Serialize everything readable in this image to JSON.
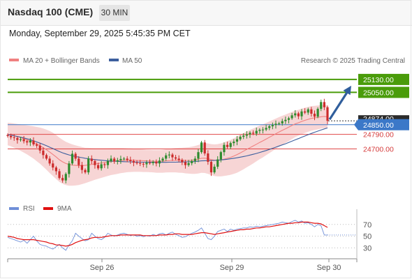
{
  "header": {
    "instrument": "Nasdaq 100 (CME)",
    "timeframe": "30 MIN",
    "datetime": "Monday, September 29, 2025 5:45:35 PM CET"
  },
  "legend": {
    "ma20_label": "MA 20 + Bollinger Bands",
    "ma50_label": "MA 50",
    "credit": "Research © 2025 Trading Central",
    "rsi_label": "RSI",
    "rsi_ma_label": "9MA"
  },
  "colors": {
    "resistance": "#4a9c0a",
    "pivot": "#3b78c8",
    "support": "#e04848",
    "candle_up": "#2e8b2e",
    "candle_down": "#cc2c2c",
    "bollinger_band": "#f4c7c7",
    "ma20": "#f08080",
    "ma50": "#3d5f9e",
    "arrow": "#305e9c",
    "rsi": "#6f8fd8",
    "rsi_ma": "#e01010"
  },
  "chart_data": [
    {
      "type": "candlestick",
      "title": "Nasdaq 100 (CME)",
      "x_ticks": [
        "Sep 26",
        "Sep 29",
        "Sep 30"
      ],
      "ylim": [
        24400,
        25190
      ],
      "current_price": 24874,
      "current_price_label": "24874.00",
      "levels": [
        {
          "role": "resistance",
          "value": 25130,
          "label": "25130.00"
        },
        {
          "role": "resistance",
          "value": 25050,
          "label": "25050.00"
        },
        {
          "role": "pivot",
          "value": 24850,
          "label": "24850.00"
        },
        {
          "role": "support",
          "value": 24790,
          "label": "24790.00"
        },
        {
          "role": "support",
          "value": 24700,
          "label": "24700.00"
        }
      ],
      "forecast_arrow": {
        "from": 24874,
        "to": 25130
      },
      "close_series": [
        24780,
        24772,
        24768,
        24755,
        24760,
        24748,
        24740,
        24752,
        24728,
        24720,
        24690,
        24662,
        24640,
        24610,
        24585,
        24562,
        24520,
        24505,
        24545,
        24610,
        24670,
        24640,
        24600,
        24570,
        24555,
        24640,
        24625,
        24600,
        24580,
        24605,
        24600,
        24625,
        24640,
        24622,
        24630,
        24638,
        24640,
        24632,
        24625,
        24615,
        24612,
        24608,
        24605,
        24615,
        24612,
        24620,
        24610,
        24628,
        24640,
        24660,
        24665,
        24648,
        24640,
        24632,
        24618,
        24600,
        24612,
        24625,
        24640,
        24680,
        24740,
        24672,
        24620,
        24555,
        24590,
        24635,
        24680,
        24725,
        24712,
        24736,
        24745,
        24760,
        24775,
        24782,
        24790,
        24800,
        24795,
        24812,
        24818,
        24820,
        24830,
        24840,
        24848,
        24856,
        24858,
        24872,
        24880,
        24890,
        24908,
        24920,
        24902,
        24932,
        24925,
        24945,
        24918,
        24900,
        24948,
        24990,
        24958,
        24874
      ],
      "ma20": [
        24792,
        24788,
        24782,
        24776,
        24770,
        24763,
        24756,
        24748,
        24740,
        24730,
        24720,
        24708,
        24695,
        24681,
        24666,
        24650,
        24633,
        24620,
        24610,
        24604,
        24600,
        24598,
        24597,
        24597,
        24598,
        24601,
        24604,
        24607,
        24610,
        24613,
        24616,
        24619,
        24622,
        24624,
        24626,
        24628,
        24629,
        24630,
        24630,
        24630,
        24629,
        24628,
        24627,
        24626,
        24625,
        24624,
        24623,
        24623,
        24624,
        24626,
        24628,
        24629,
        24630,
        24630,
        24630,
        24629,
        24629,
        24630,
        24632,
        24636,
        24642,
        24643,
        24640,
        24634,
        24630,
        24630,
        24632,
        24637,
        24642,
        24648,
        24656,
        24665,
        24675,
        24686,
        24697,
        24708,
        24718,
        24729,
        24740,
        24750,
        24761,
        24772,
        24783,
        24794,
        24805,
        24815,
        24825,
        24835,
        24845,
        24855,
        24862,
        24870,
        24877,
        24883,
        24889,
        24892,
        24895,
        24899,
        24901,
        24898
      ],
      "ma50": [
        24788,
        24785,
        24781,
        24777,
        24773,
        24768,
        24763,
        24757,
        24750,
        24743,
        24736,
        24728,
        24720,
        24711,
        24702,
        24693,
        24684,
        24676,
        24669,
        24663,
        24658,
        24653,
        24649,
        24646,
        24642,
        24639,
        24636,
        24634,
        24632,
        24630,
        24628,
        24626,
        24625,
        24624,
        24623,
        24622,
        24621,
        24620,
        24620,
        24619,
        24619,
        24618,
        24618,
        24618,
        24617,
        24617,
        24617,
        24617,
        24617,
        24617,
        24618,
        24618,
        24618,
        24619,
        24619,
        24620,
        24620,
        24621,
        24622,
        24624,
        24626,
        24627,
        24628,
        24628,
        24629,
        24630,
        24632,
        24634,
        24636,
        24639,
        24642,
        24645,
        24649,
        24653,
        24657,
        24662,
        24667,
        24672,
        24678,
        24684,
        24690,
        24697,
        24704,
        24711,
        24718,
        24725,
        24732,
        24740,
        24748,
        24756,
        24764,
        24772,
        24780,
        24788,
        24796,
        24803,
        24810,
        24817,
        24824,
        24830
      ],
      "bollinger_width": [
        70,
        72,
        75,
        78,
        82,
        86,
        90,
        95,
        100,
        106,
        112,
        118,
        124,
        130,
        134,
        136,
        137,
        136,
        134,
        132,
        128,
        124,
        120,
        115,
        110,
        106,
        102,
        98,
        95,
        92,
        89,
        86,
        84,
        82,
        80,
        78,
        76,
        74,
        73,
        72,
        71,
        70,
        70,
        69,
        69,
        69,
        70,
        70,
        71,
        72,
        73,
        74,
        75,
        77,
        78,
        80,
        82,
        84,
        86,
        88,
        90,
        92,
        94,
        96,
        98,
        100,
        102,
        104,
        106,
        108,
        110,
        112,
        112,
        112,
        111,
        110,
        108,
        106,
        104,
        102,
        100,
        98,
        96,
        94,
        92,
        90,
        88,
        86,
        84,
        82,
        80,
        79,
        78,
        77,
        76,
        75,
        74,
        73,
        72,
        72
      ]
    },
    {
      "type": "line",
      "title": "RSI",
      "ylim": [
        15,
        90
      ],
      "y_ticks": [
        70,
        50,
        30
      ],
      "series": [
        {
          "name": "RSI",
          "values": [
            48,
            46,
            44,
            42,
            40,
            43,
            38,
            44,
            50,
            42,
            36,
            34,
            33,
            30,
            28,
            32,
            36,
            30,
            26,
            35,
            42,
            55,
            50,
            46,
            42,
            44,
            55,
            50,
            46,
            44,
            48,
            55,
            52,
            50,
            52,
            54,
            55,
            53,
            51,
            52,
            50,
            51,
            49,
            51,
            50,
            53,
            51,
            54,
            55,
            52,
            55,
            57,
            53,
            51,
            48,
            49,
            52,
            55,
            57,
            60,
            64,
            55,
            46,
            44,
            50,
            58,
            60,
            62,
            58,
            62,
            60,
            62,
            63,
            64,
            64,
            66,
            65,
            67,
            66,
            67,
            68,
            69,
            70,
            71,
            72,
            74,
            73,
            72,
            75,
            77,
            74,
            76,
            72,
            73,
            70,
            66,
            70,
            68,
            52,
            52
          ]
        },
        {
          "name": "9MA",
          "values": [
            50,
            49,
            48,
            46,
            45,
            44,
            44,
            44,
            44,
            43,
            42,
            41,
            40,
            38,
            37,
            35,
            35,
            34,
            33,
            34,
            36,
            39,
            41,
            43,
            44,
            45,
            47,
            48,
            48,
            48,
            49,
            50,
            51,
            51,
            51,
            52,
            52,
            52,
            52,
            52,
            52,
            52,
            51,
            51,
            51,
            51,
            51,
            52,
            52,
            52,
            53,
            53,
            54,
            54,
            53,
            53,
            53,
            53,
            54,
            55,
            56,
            56,
            55,
            54,
            53,
            54,
            55,
            56,
            57,
            58,
            59,
            60,
            61,
            61,
            62,
            62,
            63,
            64,
            64,
            65,
            66,
            66,
            67,
            68,
            69,
            70,
            71,
            72,
            72,
            73,
            73,
            74,
            74,
            74,
            73,
            72,
            72,
            71,
            68,
            65
          ]
        }
      ]
    }
  ]
}
